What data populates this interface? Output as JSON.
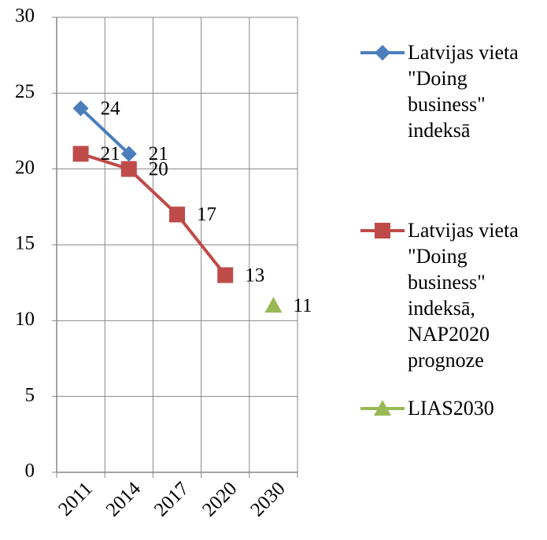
{
  "chart_data": {
    "type": "line",
    "categories": [
      "2011",
      "2014",
      "2017",
      "2020",
      "2030"
    ],
    "series": [
      {
        "name": "Latvijas vieta \"Doing business\" indeksā",
        "color": "#4a7ebb",
        "marker": "diamond",
        "values": [
          24,
          21,
          null,
          null,
          null
        ]
      },
      {
        "name": "Latvijas vieta \"Doing business\" indeksā, NAP2020 prognoze",
        "color": "#be4b48",
        "marker": "square",
        "values": [
          21,
          20,
          17,
          13,
          null
        ]
      },
      {
        "name": "LIAS2030",
        "color": "#98b954",
        "marker": "triangle",
        "values": [
          null,
          null,
          null,
          null,
          11
        ]
      }
    ],
    "ylim": [
      0,
      30
    ],
    "yticks": [
      0,
      5,
      10,
      15,
      20,
      25,
      30
    ],
    "grid": true,
    "legend": "right"
  }
}
